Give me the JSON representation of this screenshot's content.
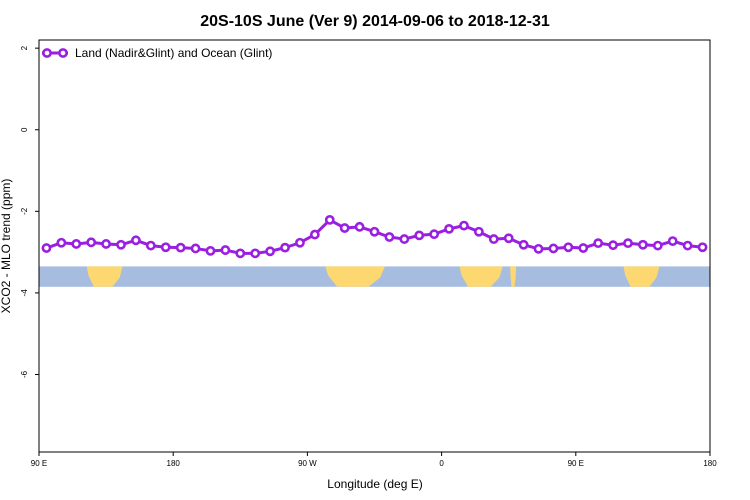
{
  "chart_data": {
    "type": "line",
    "title": "20S-10S June (Ver 9)   2014-09-06 to 2018-12-31",
    "xlabel": "Longitude (deg E)",
    "ylabel": "XCO2 - MLO trend (ppm)",
    "x_ticks": [
      {
        "value": 90,
        "label": "90 E"
      },
      {
        "value": 180,
        "label": "180"
      },
      {
        "value": 270,
        "label": "90 W"
      },
      {
        "value": 360,
        "label": "0"
      },
      {
        "value": 450,
        "label": "90 E"
      },
      {
        "value": 540,
        "label": "180"
      }
    ],
    "y_ticks": [
      {
        "value": 2,
        "label": "2"
      },
      {
        "value": 0,
        "label": "0"
      },
      {
        "value": -2,
        "label": "-2"
      },
      {
        "value": -4,
        "label": "-4"
      },
      {
        "value": -6,
        "label": "-6"
      }
    ],
    "xlim": [
      90,
      540
    ],
    "ylim": [
      -7.9,
      2.2
    ],
    "grid": false,
    "legend_position": "top-left",
    "series": [
      {
        "name": "Land (Nadir&Glint) and Ocean (Glint)",
        "color": "#9a1fe0",
        "x": [
          95,
          105,
          115,
          125,
          135,
          145,
          155,
          165,
          175,
          185,
          195,
          205,
          215,
          225,
          235,
          245,
          255,
          265,
          275,
          285,
          295,
          305,
          315,
          325,
          335,
          345,
          355,
          365,
          375,
          385,
          395,
          405,
          415,
          425,
          435,
          445,
          455,
          465,
          475,
          485,
          495,
          505,
          515,
          525,
          535
        ],
        "values": [
          -2.9,
          -2.77,
          -2.8,
          -2.76,
          -2.8,
          -2.82,
          -2.71,
          -2.84,
          -2.88,
          -2.89,
          -2.91,
          -2.97,
          -2.95,
          -3.03,
          -3.03,
          -2.98,
          -2.89,
          -2.77,
          -2.57,
          -2.21,
          -2.41,
          -2.38,
          -2.5,
          -2.63,
          -2.68,
          -2.59,
          -2.56,
          -2.43,
          -2.35,
          -2.5,
          -2.68,
          -2.66,
          -2.82,
          -2.92,
          -2.91,
          -2.88,
          -2.9,
          -2.78,
          -2.83,
          -2.78,
          -2.82,
          -2.84,
          -2.73,
          -2.84,
          -2.88
        ]
      }
    ],
    "map_strip": {
      "description": "land-ocean map strip of the 20S-10S band",
      "y_range": [
        -3.85,
        -3.35
      ],
      "ocean_color": "#a7bde0",
      "land_color": "#fdd871",
      "land_segments": [
        {
          "x_start": 122,
          "x_end": 146
        },
        {
          "x_start": 282,
          "x_end": 322
        },
        {
          "x_start": 372,
          "x_end": 401
        },
        {
          "x_start": 406,
          "x_end": 410
        },
        {
          "x_start": 482,
          "x_end": 506
        }
      ]
    }
  }
}
